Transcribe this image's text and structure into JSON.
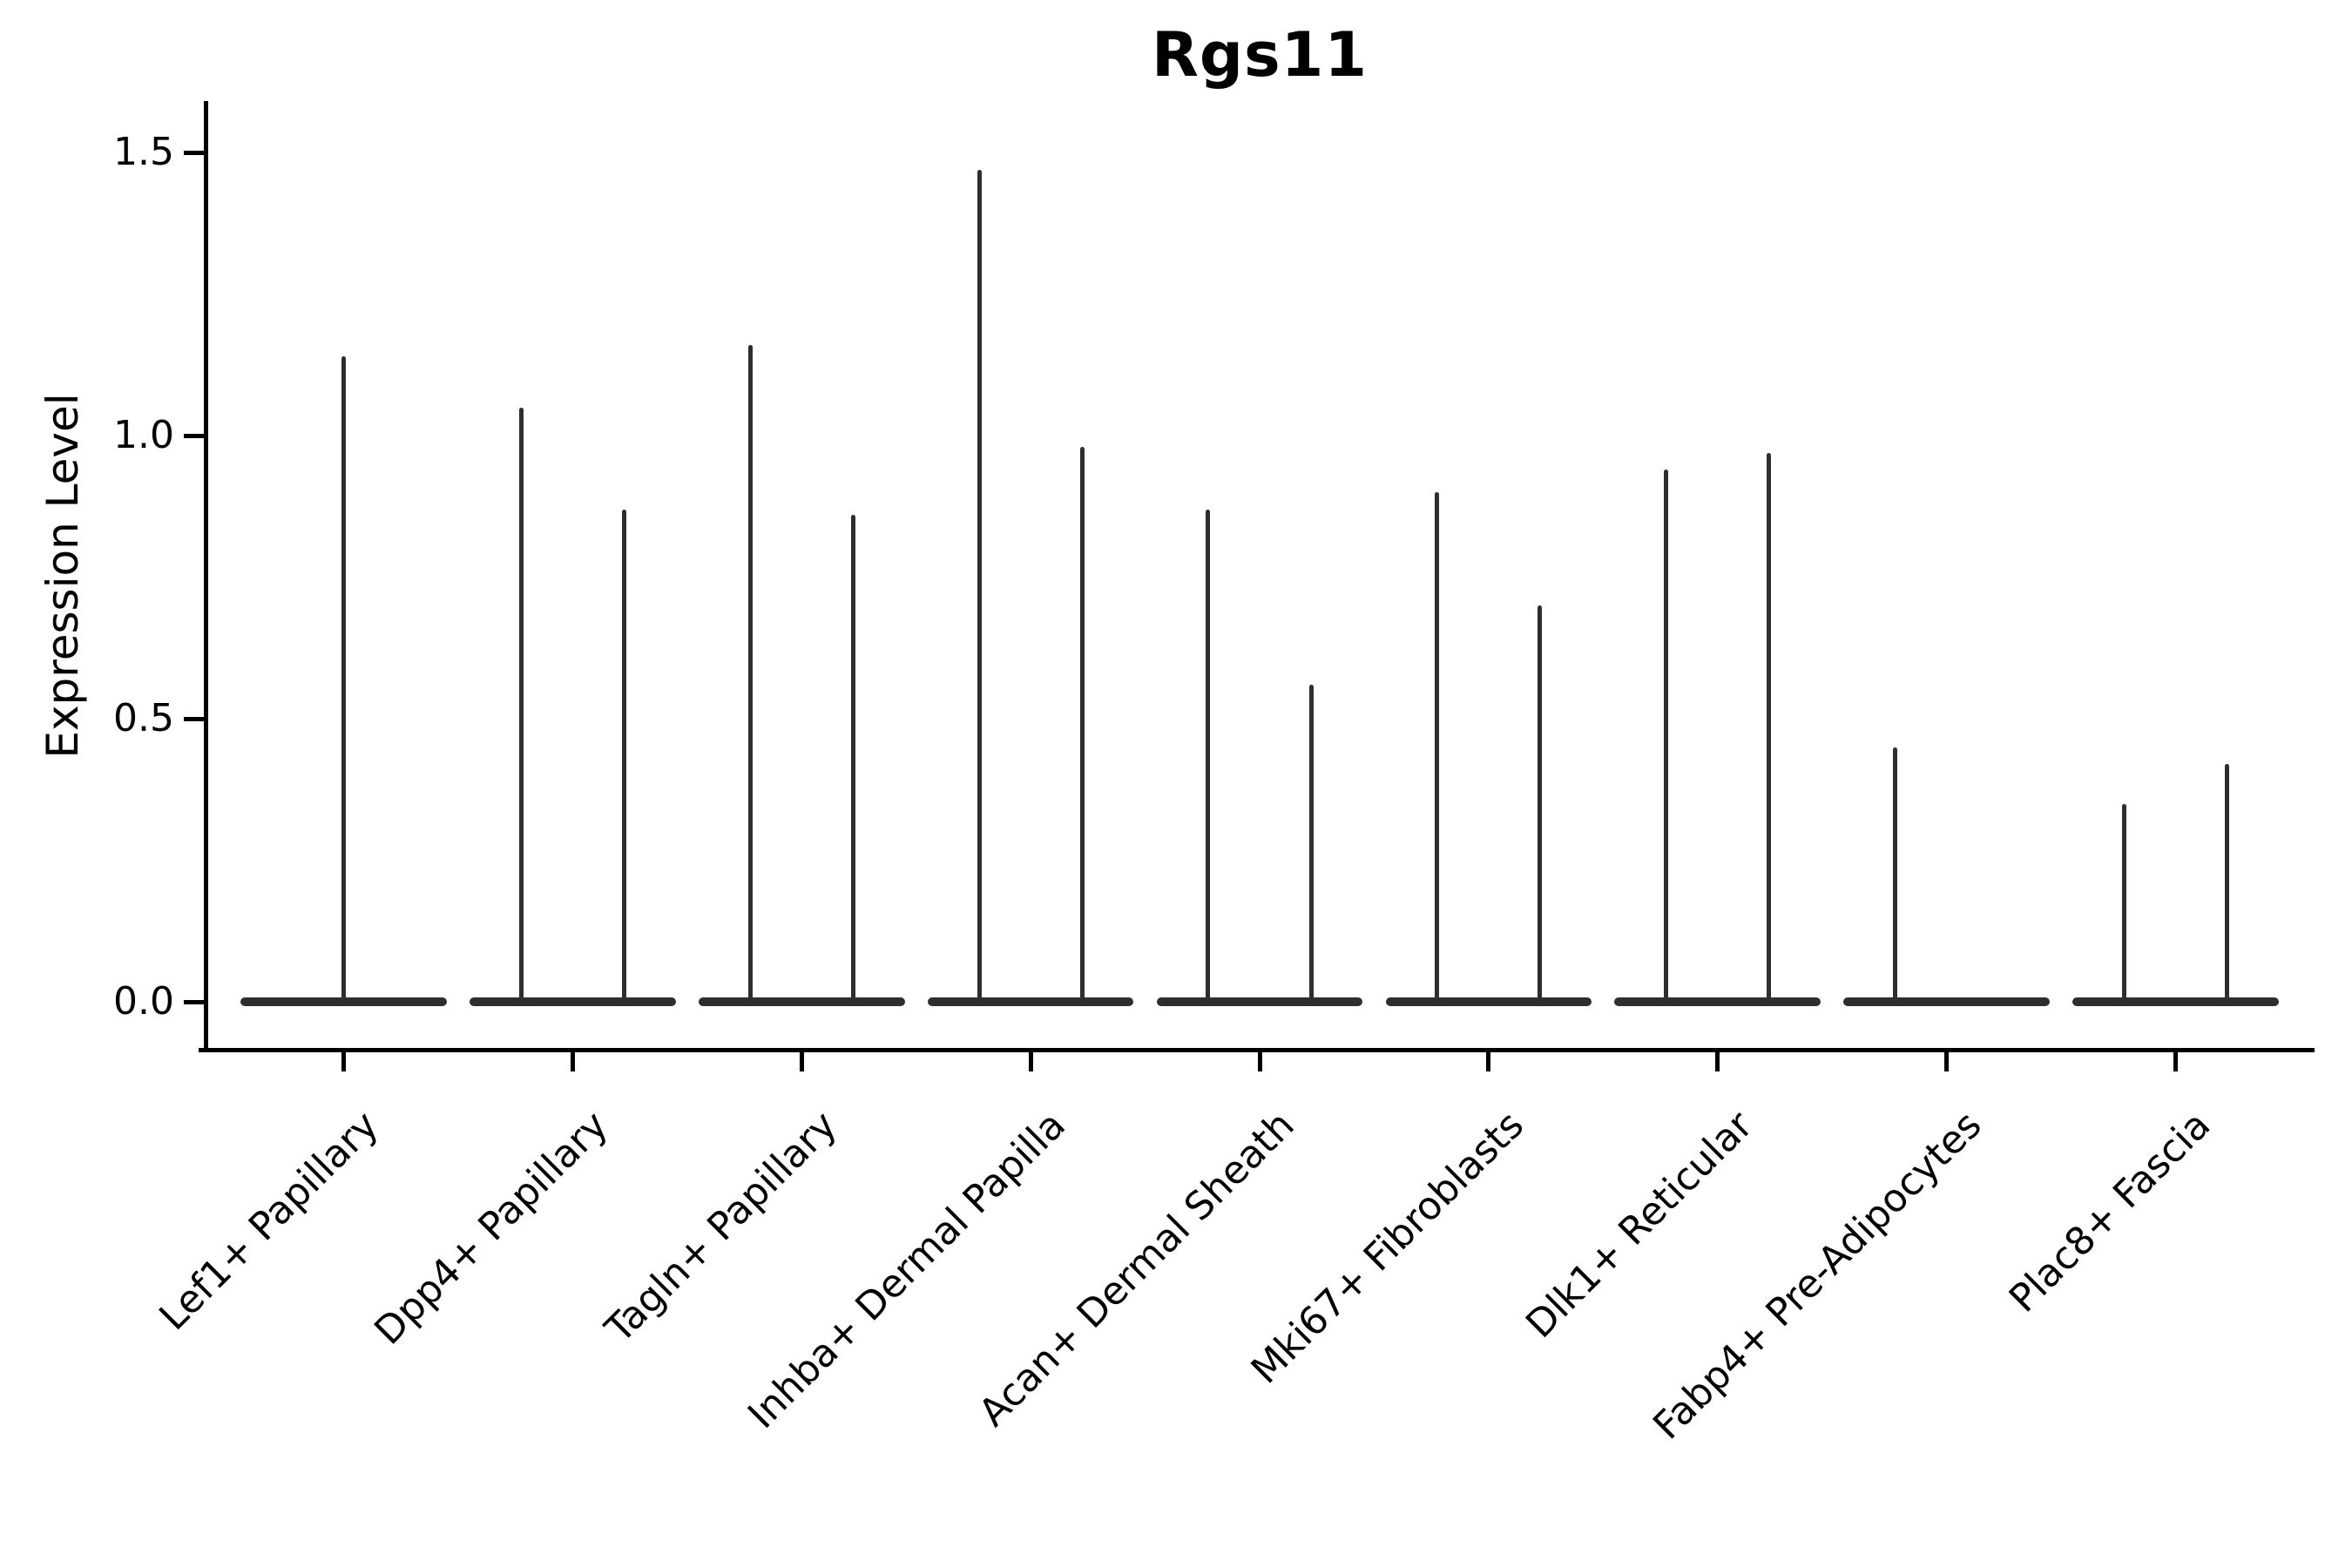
{
  "chart_data": {
    "type": "violin",
    "title": "Rgs11",
    "xlabel": "",
    "ylabel": "Expression Level",
    "ytick_values": [
      0.0,
      0.5,
      1.0,
      1.5
    ],
    "ytick_labels": [
      "0.0",
      "0.5",
      "1.0",
      "1.5"
    ],
    "ylim": [
      -0.08,
      1.59
    ],
    "grid": false,
    "legend": "none",
    "style_note": "flattened near-zero violins: each violin is a flat dark lens at y=0 with a thin vertical spike up to the max expression value",
    "colors": {
      "violin": "#2e2e2e",
      "axis": "#000000",
      "text": "#000000",
      "background": "#ffffff"
    },
    "categories": [
      "Lef1+ Papillary",
      "Dpp4+ Papillary",
      "Tagln+ Papillary",
      "Inhba+ Dermal Papilla",
      "Acan+ Dermal Sheath",
      "Mki67+ Fibroblasts",
      "Dlk1+ Reticular",
      "Fabp4+ Pre-Adipocytes",
      "Plac8+ Fascia"
    ],
    "series": [
      {
        "category": "Lef1+ Papillary",
        "violins": [
          {
            "group_position": "center",
            "width": "full",
            "max": 1.14
          }
        ]
      },
      {
        "category": "Dpp4+ Papillary",
        "violins": [
          {
            "group_position": "left",
            "width": "half",
            "max": 1.05
          },
          {
            "group_position": "right",
            "width": "half",
            "max": 0.87
          }
        ]
      },
      {
        "category": "Tagln+ Papillary",
        "violins": [
          {
            "group_position": "left",
            "width": "half",
            "max": 1.16
          },
          {
            "group_position": "right",
            "width": "half",
            "max": 0.86
          }
        ]
      },
      {
        "category": "Inhba+ Dermal Papilla",
        "violins": [
          {
            "group_position": "left",
            "width": "half",
            "max": 1.47
          },
          {
            "group_position": "right",
            "width": "half",
            "max": 0.98
          }
        ]
      },
      {
        "category": "Acan+ Dermal Sheath",
        "violins": [
          {
            "group_position": "left",
            "width": "half",
            "max": 0.87
          },
          {
            "group_position": "right",
            "width": "half",
            "max": 0.56
          }
        ]
      },
      {
        "category": "Mki67+ Fibroblasts",
        "violins": [
          {
            "group_position": "left",
            "width": "half",
            "max": 0.9
          },
          {
            "group_position": "right",
            "width": "half",
            "max": 0.7
          }
        ]
      },
      {
        "category": "Dlk1+ Reticular",
        "violins": [
          {
            "group_position": "left",
            "width": "half",
            "max": 0.94
          },
          {
            "group_position": "right",
            "width": "half",
            "max": 0.97
          }
        ]
      },
      {
        "category": "Fabp4+ Pre-Adipocytes",
        "violins": [
          {
            "group_position": "left",
            "width": "half",
            "max": 0.45
          },
          {
            "group_position": "right",
            "width": "half",
            "max": 0.0
          }
        ]
      },
      {
        "category": "Plac8+ Fascia",
        "violins": [
          {
            "group_position": "left",
            "width": "half",
            "max": 0.35
          },
          {
            "group_position": "right",
            "width": "half",
            "max": 0.42
          }
        ]
      }
    ]
  }
}
